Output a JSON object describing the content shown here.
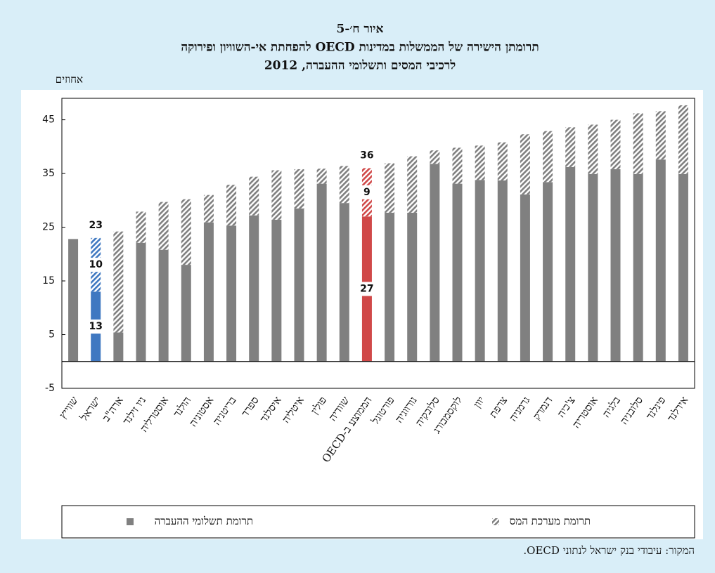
{
  "chart_data": {
    "type": "stacked_bar",
    "title": [
      "איור ח׳-5",
      "תרומתן הישירה של הממשלות במדינות OECD להפחתת אי-השוויון ופירוקה",
      "לרכיבי המסים ותשלומי ההעברה, 2012"
    ],
    "ylabel": "אחוזים",
    "categories": [
      "שווייץ",
      "ישראל",
      "ארה\"ב",
      "ניו זילנד",
      "אוסטרליה",
      "הולנד",
      "אסטוניה",
      "בריטניה",
      "ספרד",
      "איסלנד",
      "איטליה",
      "פולין",
      "שוודיה",
      "הממוצע ב-OECD",
      "פורטוגל",
      "נורווגיה",
      "סלובקיה",
      "לוקסמבורג",
      "יוון",
      "צרפת",
      "גרמניה",
      "דנמרק",
      "צ'כיה",
      "אוסטריה",
      "בלגיה",
      "סלובניה",
      "פינלנד",
      "אירלנד"
    ],
    "series": [
      {
        "name": "תרומת תשלומי ההעברה",
        "color": "#808080",
        "pattern": "solid",
        "values": [
          22.8,
          13,
          5.4,
          22.1,
          20.8,
          18,
          25.9,
          25.3,
          27.2,
          26.4,
          28.5,
          33.1,
          29.5,
          27,
          27.7,
          27.7,
          36.8,
          33.1,
          33.8,
          33.7,
          31.1,
          33.4,
          36.2,
          34.9,
          35.8,
          34.9,
          37.6,
          34.9
        ]
      },
      {
        "name": "תרומת מערכת המס",
        "color": "#808080",
        "pattern": "hatch",
        "values": [
          0,
          10,
          18.8,
          5.8,
          8.9,
          12.2,
          5.1,
          7.6,
          7.2,
          9.2,
          7.3,
          2.8,
          6.9,
          9,
          9.2,
          10.5,
          2.5,
          6.7,
          6.4,
          7.1,
          11.2,
          9.5,
          7.4,
          9.2,
          9.2,
          11.3,
          9,
          12.8
        ]
      }
    ],
    "highlights": [
      {
        "category": "ישראל",
        "color": "#3f78c1",
        "total": 23
      },
      {
        "category": "הממוצע ב-OECD",
        "color": "#d04848",
        "total": 36
      }
    ],
    "ylim": [
      -5,
      49
    ],
    "yticks": [
      -5,
      5,
      15,
      25,
      35,
      45
    ],
    "grid": false,
    "legend": "bottom",
    "source": "המקור: עיבודי בנק ישראל לנתוני OECD."
  }
}
